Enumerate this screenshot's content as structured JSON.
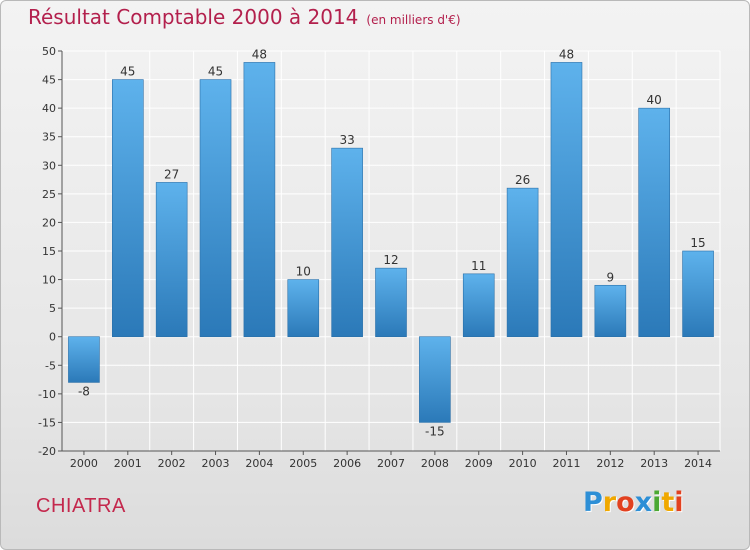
{
  "title": {
    "main": "Résultat Comptable 2000 à 2014",
    "unit": "(en milliers d'€)"
  },
  "footer": {
    "commune": "CHIATRA",
    "logo_text": "Proxiti",
    "logo_letters": [
      {
        "ch": "P",
        "color": "#2d8fd6"
      },
      {
        "ch": "r",
        "color": "#f0a800"
      },
      {
        "ch": "o",
        "color": "#e2411f"
      },
      {
        "ch": "x",
        "color": "#2d8fd6"
      },
      {
        "ch": "i",
        "color": "#4aa832"
      },
      {
        "ch": "t",
        "color": "#f0a800"
      },
      {
        "ch": "i",
        "color": "#e2411f"
      }
    ]
  },
  "colors": {
    "title": "#b3204d",
    "bar_top": "#5eb2ec",
    "bar_bottom": "#2b79b8",
    "grid": "#ffffff",
    "axis": "#555555"
  },
  "chart_data": {
    "type": "bar",
    "categories": [
      "2000",
      "2001",
      "2002",
      "2003",
      "2004",
      "2005",
      "2006",
      "2007",
      "2008",
      "2009",
      "2010",
      "2011",
      "2012",
      "2013",
      "2014"
    ],
    "values": [
      -8,
      45,
      27,
      45,
      48,
      10,
      33,
      12,
      -15,
      11,
      26,
      48,
      9,
      40,
      15
    ],
    "title": "Résultat Comptable 2000 à 2014",
    "subtitle": "(en milliers d'€)",
    "xlabel": "",
    "ylabel": "",
    "ylim": [
      -20,
      50
    ],
    "yticks": [
      -20,
      -15,
      -10,
      -5,
      0,
      5,
      10,
      15,
      20,
      25,
      30,
      35,
      40,
      45,
      50
    ],
    "grid": true,
    "legend": "none"
  }
}
